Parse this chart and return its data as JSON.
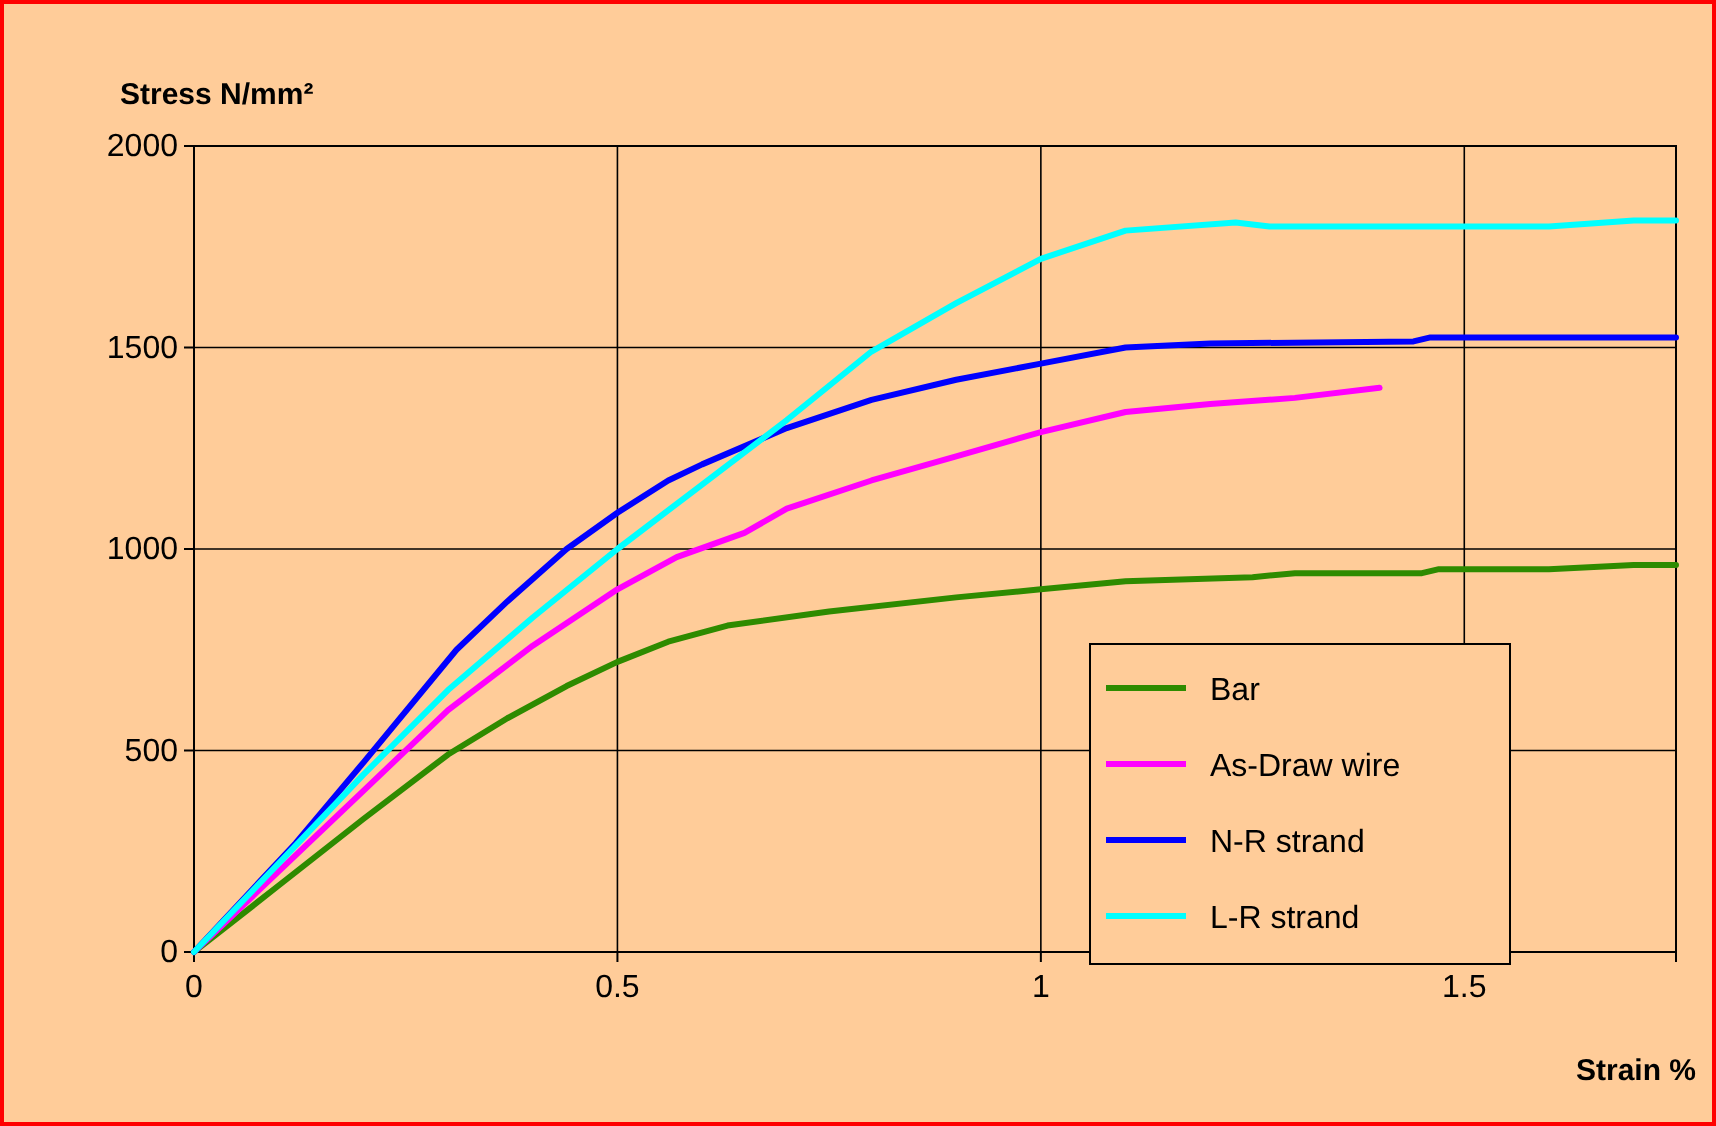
{
  "chart_data": {
    "type": "line",
    "ylabel": "Stress N/mm²",
    "xlabel": "Strain %",
    "xlim": [
      0,
      1.75
    ],
    "xticks": [
      0,
      0.5,
      1,
      1.5
    ],
    "ylim": [
      0,
      2000
    ],
    "yticks": [
      0,
      500,
      1000,
      1500,
      2000
    ],
    "grid": true,
    "legend": "bottom right",
    "marker": "none",
    "line_style": "solid",
    "series": [
      {
        "name": "Bar",
        "color": "#2e8b00",
        "x": [
          0,
          0.1,
          0.2,
          0.3,
          0.37,
          0.44,
          0.5,
          0.56,
          0.63,
          0.75,
          0.9,
          1.0,
          1.1,
          1.25,
          1.3,
          1.45,
          1.47,
          1.6,
          1.7,
          1.75
        ],
        "values": [
          0,
          165,
          330,
          490,
          580,
          660,
          720,
          770,
          810,
          845,
          880,
          900,
          920,
          930,
          940,
          940,
          950,
          950,
          960,
          960
        ]
      },
      {
        "name": "As-Draw wire",
        "color": "#ff00ff",
        "x": [
          0,
          0.1,
          0.2,
          0.3,
          0.4,
          0.5,
          0.57,
          0.65,
          0.7,
          0.8,
          0.9,
          1.0,
          1.1,
          1.2,
          1.3,
          1.4
        ],
        "values": [
          0,
          200,
          400,
          600,
          760,
          900,
          980,
          1040,
          1100,
          1170,
          1230,
          1290,
          1340,
          1360,
          1375,
          1400
        ]
      },
      {
        "name": "N-R strand",
        "color": "#0000ff",
        "x": [
          0,
          0.12,
          0.2,
          0.31,
          0.37,
          0.44,
          0.5,
          0.56,
          0.6,
          0.7,
          0.8,
          0.9,
          1.0,
          1.1,
          1.2,
          1.44,
          1.46,
          1.75
        ],
        "values": [
          0,
          270,
          470,
          750,
          870,
          1000,
          1090,
          1170,
          1210,
          1300,
          1370,
          1420,
          1460,
          1500,
          1510,
          1515,
          1525,
          1525
        ]
      },
      {
        "name": "L-R strand",
        "color": "#00ffff",
        "x": [
          0,
          0.1,
          0.2,
          0.3,
          0.4,
          0.5,
          0.6,
          0.7,
          0.8,
          0.9,
          1.0,
          1.1,
          1.23,
          1.27,
          1.6,
          1.7,
          1.75
        ],
        "values": [
          0,
          220,
          440,
          650,
          830,
          1000,
          1160,
          1320,
          1490,
          1610,
          1720,
          1790,
          1810,
          1800,
          1800,
          1815,
          1815
        ]
      }
    ]
  }
}
